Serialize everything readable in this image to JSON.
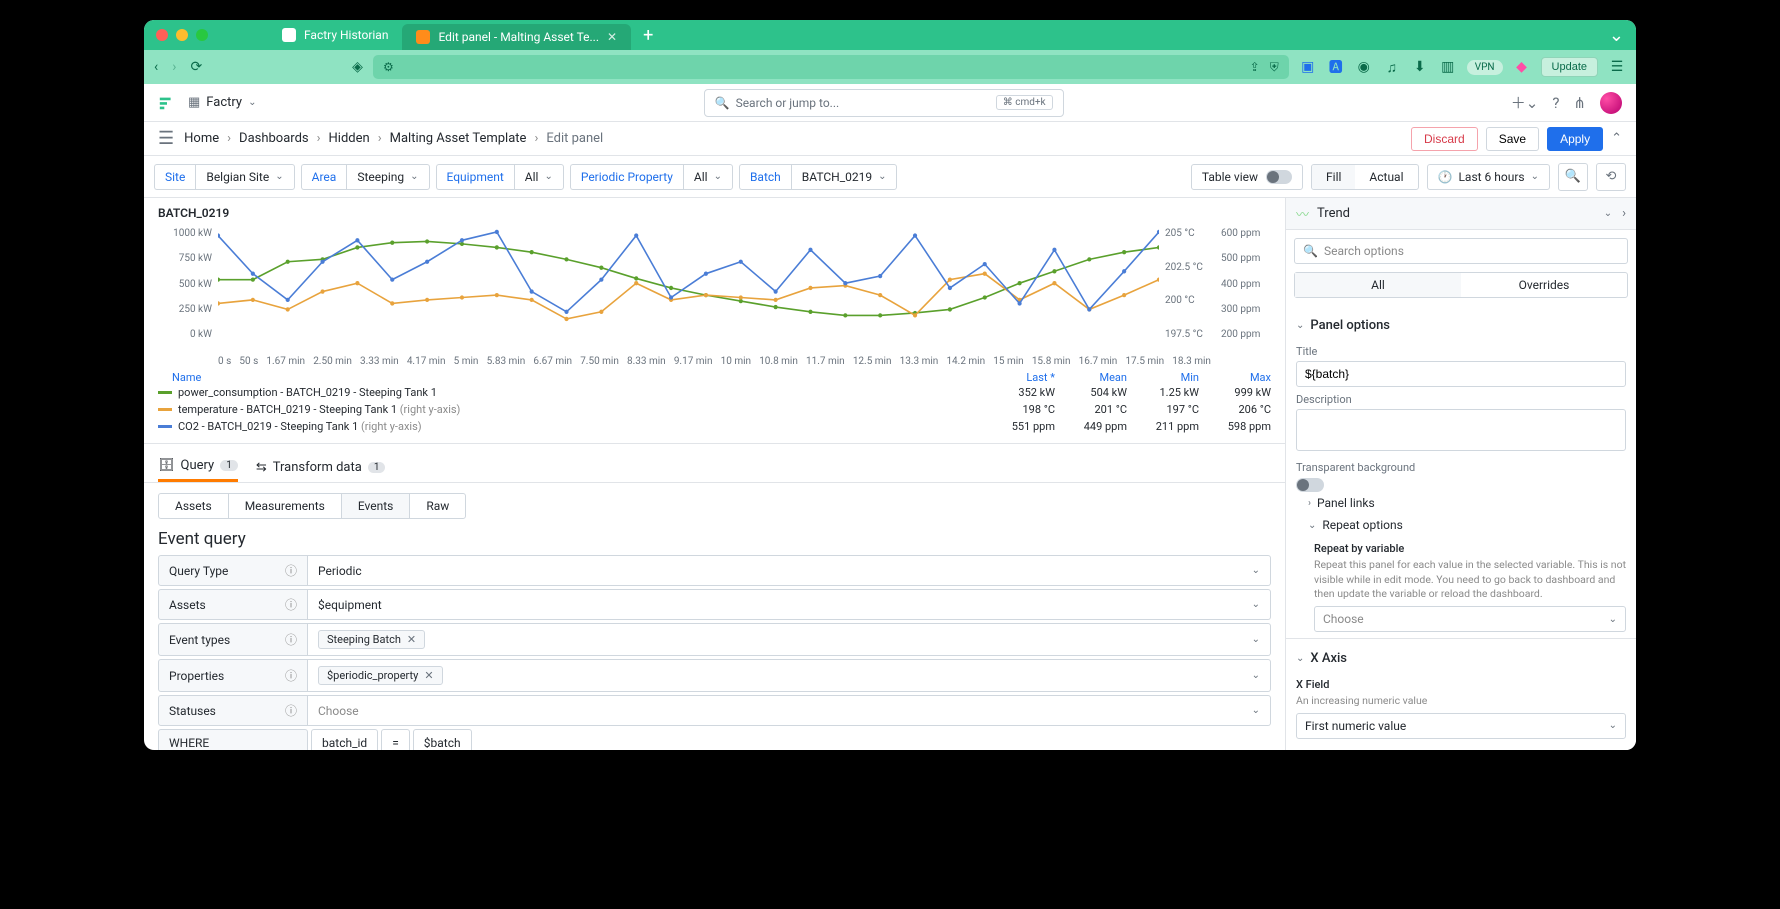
{
  "browser": {
    "tabs": [
      {
        "label": "Factry Historian",
        "active": false
      },
      {
        "label": "Edit panel - Malting Asset Te...",
        "active": true
      }
    ],
    "icons": [
      "translate",
      "extensions",
      "sync",
      "music",
      "downloads",
      "tab",
      "vpn",
      "brave",
      "update",
      "menu"
    ],
    "vpn": "VPN",
    "update": "Update"
  },
  "app": {
    "name": "Factry",
    "search_placeholder": "Search or jump to...",
    "search_kbd": "⌘ cmd+k"
  },
  "breadcrumbs": {
    "items": [
      "Home",
      "Dashboards",
      "Hidden",
      "Malting Asset Template",
      "Edit panel"
    ],
    "discard": "Discard",
    "save": "Save",
    "apply": "Apply"
  },
  "vars": {
    "site_label": "Site",
    "site_val": "Belgian Site",
    "area_label": "Area",
    "area_val": "Steeping",
    "equip_label": "Equipment",
    "equip_val": "All",
    "pprop_label": "Periodic Property",
    "pprop_val": "All",
    "batch_label": "Batch",
    "batch_val": "BATCH_0219",
    "table_view": "Table view",
    "fill": "Fill",
    "actual": "Actual",
    "time_range": "Last 6 hours"
  },
  "chart": {
    "title": "BATCH_0219",
    "y_left": [
      "1000 kW",
      "750 kW",
      "500 kW",
      "250 kW",
      "0 kW"
    ],
    "y_right_temp": [
      "205 °C",
      "202.5 °C",
      "200 °C",
      "197.5 °C"
    ],
    "y_right_co2": [
      "600 ppm",
      "500 ppm",
      "400 ppm",
      "300 ppm",
      "200 ppm"
    ],
    "x_ticks": [
      "0 s",
      "50 s",
      "1.67 min",
      "2.50 min",
      "3.33 min",
      "4.17 min",
      "5 min",
      "5.83 min",
      "6.67 min",
      "7.50 min",
      "8.33 min",
      "9.17 min",
      "10 min",
      "10.8 min",
      "11.7 min",
      "12.5 min",
      "13.3 min",
      "14.2 min",
      "15 min",
      "15.8 min",
      "16.7 min",
      "17.5 min",
      "18.3 min"
    ],
    "colors": {
      "power": "#5aa02c",
      "temp": "#e8a33d",
      "co2": "#4a7dd6",
      "grid": "#e8eaed"
    },
    "series": {
      "power": [
        45,
        45,
        30,
        28,
        18,
        14,
        13,
        15,
        18,
        22,
        28,
        35,
        44,
        52,
        58,
        63,
        68,
        72,
        75,
        75,
        73,
        70,
        60,
        48,
        38,
        28,
        22,
        18
      ],
      "temp": [
        65,
        62,
        70,
        55,
        48,
        65,
        62,
        60,
        58,
        62,
        78,
        72,
        48,
        62,
        58,
        60,
        62,
        52,
        50,
        58,
        75,
        45,
        40,
        62,
        48,
        70,
        58,
        45
      ],
      "co2": [
        8,
        40,
        62,
        30,
        12,
        45,
        30,
        12,
        5,
        55,
        72,
        45,
        8,
        60,
        40,
        30,
        55,
        20,
        48,
        42,
        8,
        52,
        32,
        65,
        20,
        70,
        38,
        5
      ]
    },
    "legend": {
      "hdr": {
        "name": "Name",
        "last": "Last *",
        "mean": "Mean",
        "min": "Min",
        "max": "Max"
      },
      "rows": [
        {
          "color": "#5aa02c",
          "name": "power_consumption - BATCH_0219 - Steeping Tank 1",
          "hint": "",
          "last": "352 kW",
          "mean": "504 kW",
          "min": "1.25 kW",
          "max": "999 kW"
        },
        {
          "color": "#e8a33d",
          "name": "temperature - BATCH_0219 - Steeping Tank 1",
          "hint": " (right y-axis)",
          "last": "198 °C",
          "mean": "201 °C",
          "min": "197 °C",
          "max": "206 °C"
        },
        {
          "color": "#4a7dd6",
          "name": "CO2 - BATCH_0219 - Steeping Tank 1",
          "hint": " (right y-axis)",
          "last": "551 ppm",
          "mean": "449 ppm",
          "min": "211 ppm",
          "max": "598 ppm"
        }
      ]
    }
  },
  "query": {
    "tab_query": "Query",
    "tab_query_badge": "1",
    "tab_transform": "Transform data",
    "tab_transform_badge": "1",
    "sub_assets": "Assets",
    "sub_meas": "Measurements",
    "sub_events": "Events",
    "sub_raw": "Raw",
    "title": "Event query",
    "rows": {
      "qtype": {
        "label": "Query Type",
        "value": "Periodic"
      },
      "assets": {
        "label": "Assets",
        "value": "$equipment"
      },
      "etypes": {
        "label": "Event types",
        "chip": "Steeping Batch"
      },
      "props": {
        "label": "Properties",
        "chip": "$periodic_property"
      },
      "statuses": {
        "label": "Statuses",
        "value": "Choose"
      },
      "where": {
        "label": "WHERE",
        "field": "batch_id",
        "op": "=",
        "val": "$batch"
      }
    }
  },
  "side": {
    "viz": "Trend",
    "search": "Search options",
    "tab_all": "All",
    "tab_overrides": "Overrides",
    "panel_options": "Panel options",
    "title_label": "Title",
    "title_value": "${batch}",
    "desc_label": "Description",
    "transp": "Transparent background",
    "panel_links": "Panel links",
    "repeat": "Repeat options",
    "repeat_by": "Repeat by variable",
    "repeat_help": "Repeat this panel for each value in the selected variable. This is not visible while in edit mode. You need to go back to dashboard and then update the variable or reload the dashboard.",
    "choose": "Choose",
    "xaxis": "X Axis",
    "xfield": "X Field",
    "xfield_help": "An increasing numeric value",
    "xfield_val": "First numeric value"
  }
}
